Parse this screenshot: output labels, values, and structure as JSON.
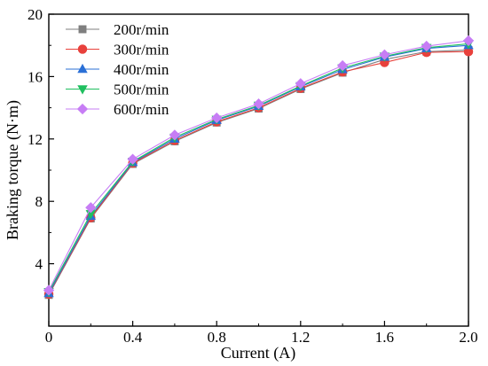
{
  "chart_data": {
    "type": "line",
    "title": "",
    "xlabel": "Current (A)",
    "ylabel": "Braking torque (N·m)",
    "xlim": [
      0,
      2.0
    ],
    "ylim": [
      0,
      20
    ],
    "x": [
      0,
      0.2,
      0.4,
      0.6,
      0.8,
      1.0,
      1.2,
      1.4,
      1.6,
      1.8,
      2.0
    ],
    "x_ticks": [
      "0",
      "0.4",
      "0.8",
      "1.2",
      "1.6",
      "2.0"
    ],
    "x_tick_values": [
      0,
      0.4,
      0.8,
      1.2,
      1.6,
      2.0
    ],
    "y_ticks": [
      "4",
      "8",
      "12",
      "16",
      "20"
    ],
    "y_tick_values": [
      4,
      8,
      12,
      16,
      20
    ],
    "grid": false,
    "legend_position": "top-left",
    "series": [
      {
        "name": "200r/min",
        "color": "#7f7f7f",
        "marker": "square",
        "values": [
          2.0,
          6.9,
          10.4,
          11.85,
          13.05,
          13.95,
          15.2,
          16.25,
          17.1,
          17.6,
          17.7
        ]
      },
      {
        "name": "300r/min",
        "color": "#e8413c",
        "marker": "circle",
        "values": [
          2.05,
          6.95,
          10.45,
          11.9,
          13.1,
          14.0,
          15.25,
          16.3,
          16.9,
          17.55,
          17.6
        ]
      },
      {
        "name": "400r/min",
        "color": "#2a6fd6",
        "marker": "triangle-up",
        "values": [
          2.1,
          7.05,
          10.5,
          12.0,
          13.2,
          14.1,
          15.35,
          16.45,
          17.25,
          17.8,
          18.0
        ]
      },
      {
        "name": "500r/min",
        "color": "#1fbf5f",
        "marker": "triangle-down",
        "values": [
          2.2,
          7.2,
          10.55,
          12.1,
          13.25,
          14.15,
          15.4,
          16.55,
          17.3,
          17.85,
          18.1
        ]
      },
      {
        "name": "600r/min",
        "color": "#c77df5",
        "marker": "diamond",
        "values": [
          2.3,
          7.6,
          10.7,
          12.25,
          13.35,
          14.25,
          15.55,
          16.7,
          17.4,
          17.95,
          18.3
        ]
      }
    ]
  }
}
